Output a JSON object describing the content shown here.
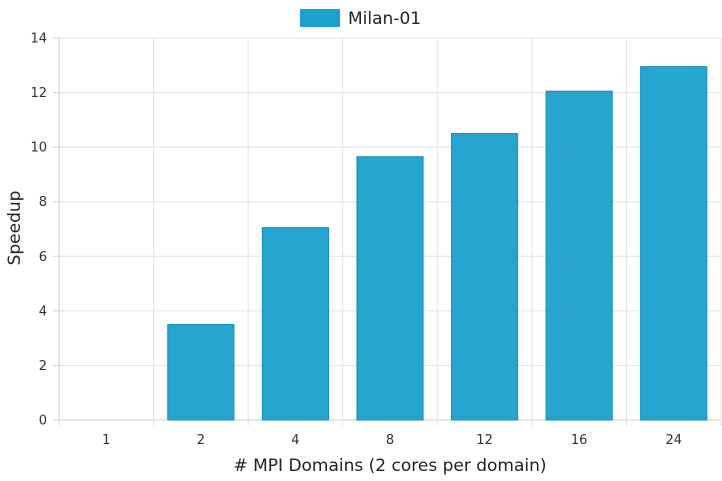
{
  "chart_data": {
    "type": "bar",
    "categories": [
      "1",
      "2",
      "4",
      "8",
      "12",
      "16",
      "24"
    ],
    "series": [
      {
        "name": "Milan-01",
        "values": [
          0,
          3.5,
          7.05,
          9.65,
          10.5,
          12.05,
          12.95
        ],
        "color": "#1aa0cc"
      }
    ],
    "xlabel": "# MPI Domains (2 cores per domain)",
    "ylabel": "Speedup",
    "ylim": [
      0,
      14
    ],
    "yticks": [
      0,
      2,
      4,
      6,
      8,
      10,
      12,
      14
    ],
    "grid": true,
    "legend": "top-center"
  }
}
